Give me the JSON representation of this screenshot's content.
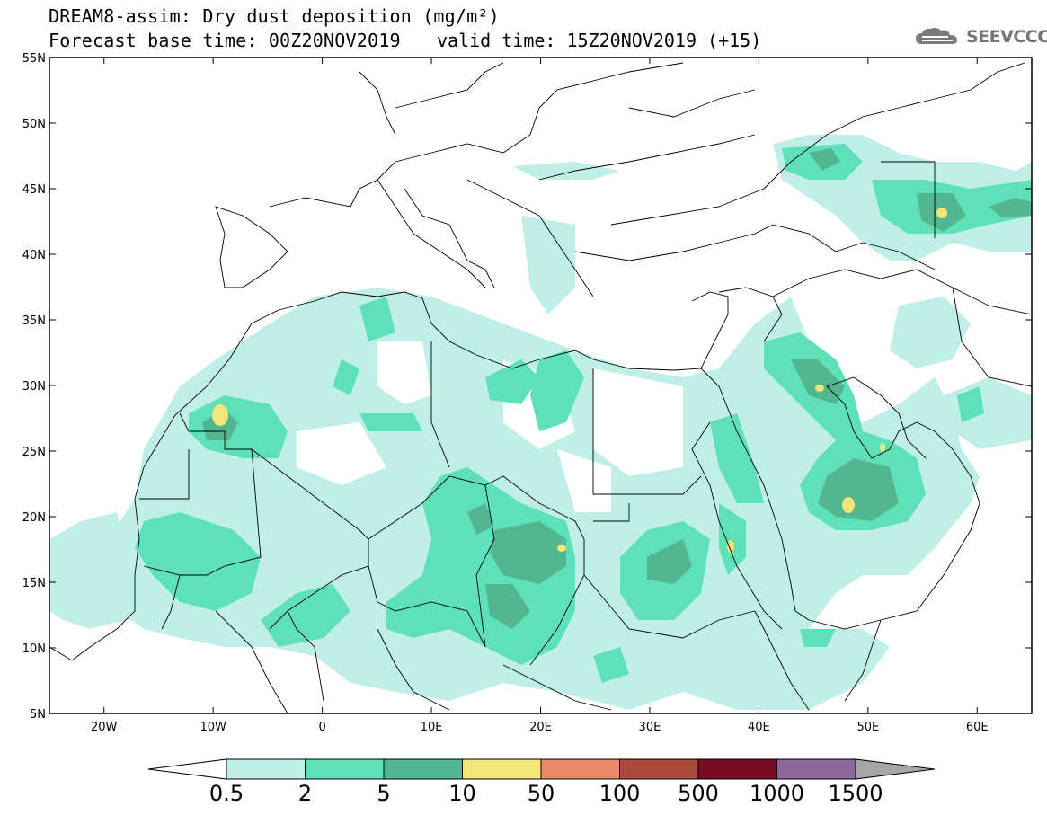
{
  "title": {
    "line1": "DREAM8-assim: Dry dust deposition (mg/m²)",
    "line2_left": "Forecast base time: 00Z20NOV2019",
    "line2_right": "valid time: 15Z20NOV2019 (+15)"
  },
  "logo": {
    "text": "SEEVCCC",
    "icon": "cloud-logo-icon"
  },
  "map": {
    "projection": "lat-lon",
    "lon_range": [
      -25,
      65
    ],
    "lat_range": [
      5,
      55
    ],
    "lat_ticks": [
      "5N",
      "10N",
      "15N",
      "20N",
      "25N",
      "30N",
      "35N",
      "40N",
      "45N",
      "50N",
      "55N"
    ],
    "lon_ticks": [
      "20W",
      "10W",
      "0",
      "10E",
      "20E",
      "30E",
      "40E",
      "50E",
      "60E"
    ]
  },
  "colorbar": {
    "levels": [
      "0.5",
      "2",
      "5",
      "10",
      "50",
      "100",
      "500",
      "1000",
      "1500"
    ],
    "colors": [
      "#c0efe8",
      "#5ee0b8",
      "#52b690",
      "#f3e678",
      "#e98a6a",
      "#a94a3c",
      "#7a0b25",
      "#8c679c",
      "#a7a7a7"
    ],
    "under_color": "#ffffff",
    "over_color": "#a7a7a7"
  }
}
